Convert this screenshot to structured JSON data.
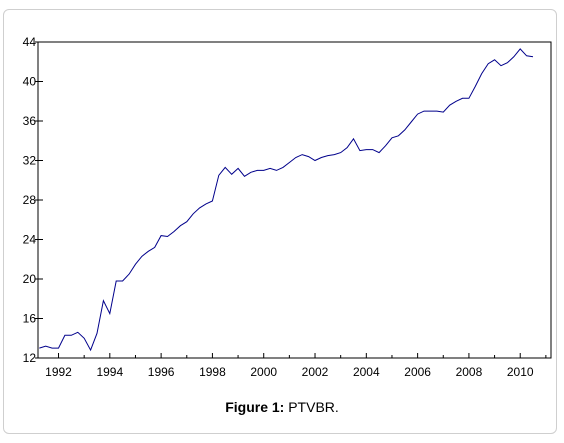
{
  "caption": {
    "label": "Figure 1:",
    "text": " PTVBR."
  },
  "chart_data": {
    "type": "line",
    "title": "",
    "xlabel": "",
    "ylabel": "",
    "xlim": [
      1991.2,
      2011.2
    ],
    "ylim": [
      12,
      44
    ],
    "yticks": [
      12,
      16,
      20,
      24,
      28,
      32,
      36,
      40,
      44
    ],
    "xticks": [
      1992,
      1994,
      1996,
      1998,
      2000,
      2002,
      2004,
      2006,
      2008,
      2010
    ],
    "grid": false,
    "line_color": "#00008b",
    "series": [
      {
        "x": [
          1991.25,
          1991.5,
          1991.75,
          1992.0,
          1992.25,
          1992.5,
          1992.75,
          1993.0,
          1993.25,
          1993.5,
          1993.75,
          1994.0,
          1994.25,
          1994.5,
          1994.75,
          1995.0,
          1995.25,
          1995.5,
          1995.75,
          1996.0,
          1996.25,
          1996.5,
          1996.75,
          1997.0,
          1997.25,
          1997.5,
          1997.75,
          1998.0,
          1998.25,
          1998.5,
          1998.75,
          1999.0,
          1999.25,
          1999.5,
          1999.75,
          2000.0,
          2000.25,
          2000.5,
          2000.75,
          2001.0,
          2001.25,
          2001.5,
          2001.75,
          2002.0,
          2002.25,
          2002.5,
          2002.75,
          2003.0,
          2003.25,
          2003.5,
          2003.75,
          2004.0,
          2004.25,
          2004.5,
          2004.75,
          2005.0,
          2005.25,
          2005.5,
          2005.75,
          2006.0,
          2006.25,
          2006.5,
          2006.75,
          2007.0,
          2007.25,
          2007.5,
          2007.75,
          2008.0,
          2008.25,
          2008.5,
          2008.75,
          2009.0,
          2009.25,
          2009.5,
          2009.75,
          2010.0,
          2010.25,
          2010.5
        ],
        "values": [
          13.0,
          13.2,
          13.0,
          13.0,
          14.3,
          14.3,
          14.6,
          14.0,
          12.8,
          14.5,
          17.8,
          16.5,
          19.8,
          19.8,
          20.5,
          21.5,
          22.3,
          22.8,
          23.2,
          24.4,
          24.3,
          24.8,
          25.4,
          25.8,
          26.6,
          27.2,
          27.6,
          27.9,
          30.5,
          31.3,
          30.6,
          31.2,
          30.4,
          30.8,
          31.0,
          31.0,
          31.2,
          31.0,
          31.3,
          31.8,
          32.3,
          32.6,
          32.4,
          32.0,
          32.3,
          32.5,
          32.6,
          32.8,
          33.3,
          34.2,
          33.0,
          33.1,
          33.1,
          32.8,
          33.5,
          34.3,
          34.5,
          35.1,
          35.9,
          36.7,
          37.0,
          37.0,
          37.0,
          36.9,
          37.6,
          38.0,
          38.3,
          38.3,
          39.5,
          40.8,
          41.8,
          42.2,
          41.6,
          41.9,
          42.5,
          43.3,
          42.6,
          42.5
        ]
      }
    ]
  }
}
